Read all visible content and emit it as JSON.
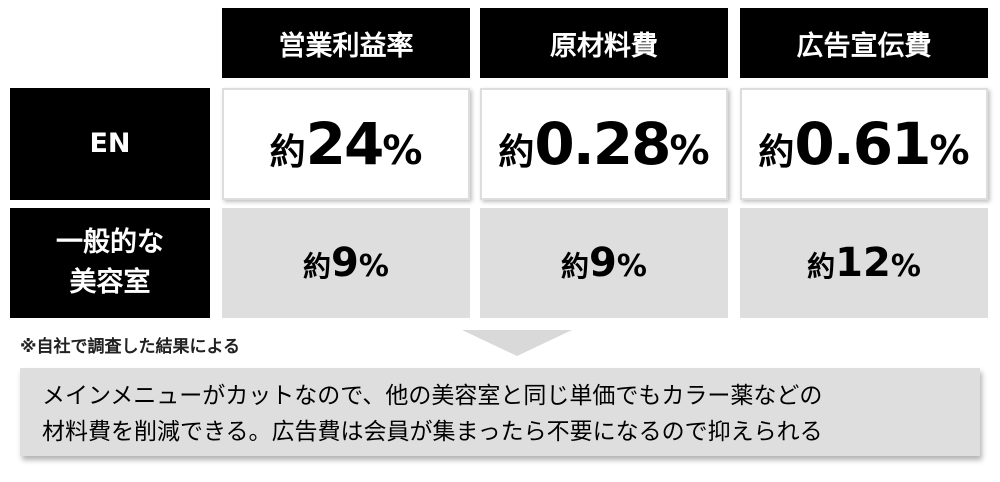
{
  "columns": [
    "営業利益率",
    "原材料費",
    "広告宣伝費"
  ],
  "rows": [
    {
      "label": "EN",
      "values": [
        {
          "prefix": "約",
          "number": "24",
          "unit": "%"
        },
        {
          "prefix": "約",
          "number": "0.28",
          "unit": "%"
        },
        {
          "prefix": "約",
          "number": "0.61",
          "unit": "%"
        }
      ]
    },
    {
      "label_line1": "一般的な",
      "label_line2": "美容室",
      "values": [
        {
          "prefix": "約",
          "number": "9",
          "unit": "%"
        },
        {
          "prefix": "約",
          "number": "9",
          "unit": "%"
        },
        {
          "prefix": "約",
          "number": "12",
          "unit": "%"
        }
      ]
    }
  ],
  "footnote": "※自社で調査した結果による",
  "summary": {
    "line1": "メインメニューがカットなので、他の美容室と同じ単価でもカラー薬などの",
    "line2": "材料費を削減できる。広告費は会員が集まったら不要になるので抑えられる"
  },
  "colors": {
    "header_bg": "#000000",
    "row2_bg": "#dedede",
    "summary_bg": "#dedede"
  }
}
